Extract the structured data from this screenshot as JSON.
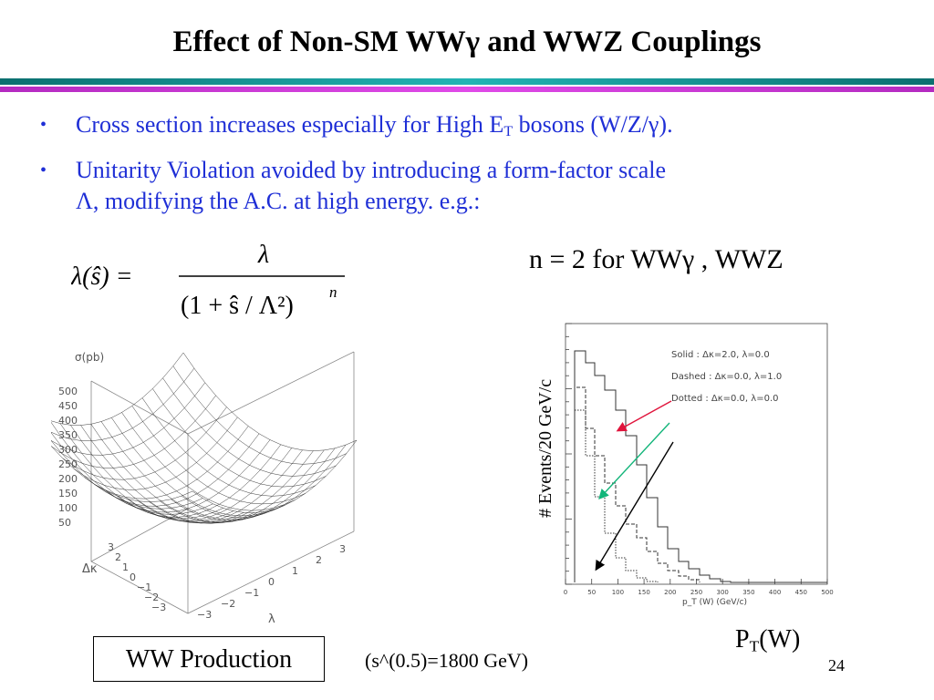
{
  "slide": {
    "title": "Effect of Non-SM WWγ and WWZ Couplings",
    "bullets": [
      {
        "text_a": "Cross section increases especially for High E",
        "sub": "T",
        "text_b": " bosons (W/Z/γ)."
      },
      {
        "line1": "Unitarity Violation avoided by introducing a form-factor scale",
        "line2": "Λ, modifying the A.C. at high energy. e.g.:"
      }
    ],
    "bullet_symbol": "•",
    "formula": {
      "lhs": "λ(ŝ) =",
      "numerator": "λ",
      "denominator": "(1 + ŝ / Λ²)",
      "exponent": "n"
    },
    "n_condition": "n = 2  for WWγ , WWZ",
    "plot3d": {
      "z_title": "σ(pb)",
      "z_ticks": [
        "500",
        "450",
        "400",
        "350",
        "300",
        "250",
        "200",
        "150",
        "100",
        "50"
      ],
      "x_label": "Δκ",
      "y_label": "λ",
      "x_ticks": [
        "3",
        "2",
        "1",
        "0",
        "−1",
        "−2",
        "−3"
      ],
      "y_ticks": [
        "−3",
        "−2",
        "−1",
        "0",
        "1",
        "2",
        "3"
      ]
    },
    "histogram": {
      "y_axis_label": "# Events/20 GeV/c",
      "x_ticks": [
        "0",
        "50",
        "100",
        "150",
        "200",
        "250",
        "300",
        "350",
        "400",
        "450",
        "500"
      ],
      "x_label": "p_T (W) (GeV/c)",
      "legend": [
        {
          "style": "Solid",
          "text": "Δκ=2.0, λ=0.0"
        },
        {
          "style": "Dashed",
          "text": "Δκ=0.0, λ=1.0"
        },
        {
          "style": "Dotted",
          "text": "Δκ=0.0, λ=0.0"
        }
      ],
      "arrow_colors": {
        "red": "#e0143c",
        "green": "#13b57a",
        "black": "#000000"
      }
    },
    "pt_label_main": "P",
    "pt_label_sub": "T",
    "pt_label_tail": "(W)",
    "ww_production": "WW Production",
    "energy_note": "(s^(0.5)=1800 GeV)",
    "page_number": "24"
  },
  "colors": {
    "bullet_text": "#1f2fd6",
    "teal_bar": "#22b4b4",
    "magenta_bar": "#e04ae8"
  }
}
